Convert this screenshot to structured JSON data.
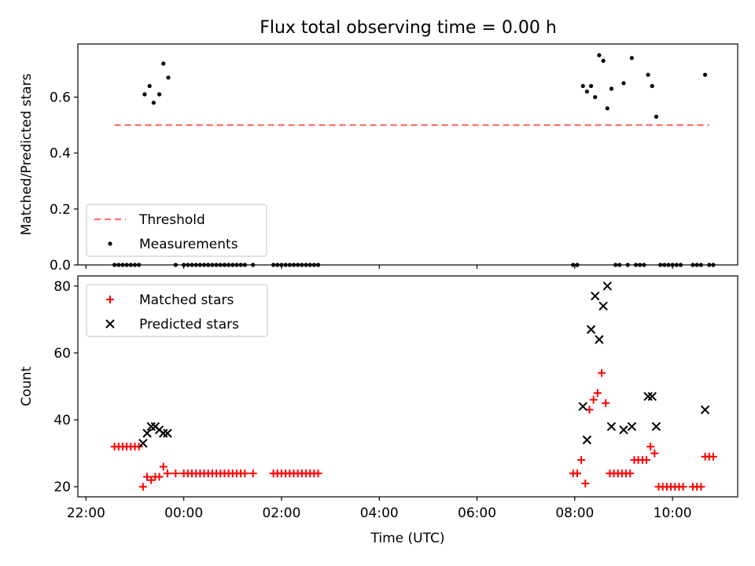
{
  "figure": {
    "title": "Flux total observing time = 0.00 h"
  },
  "chart_data": [
    {
      "type": "scatter",
      "ylabel": "Matched/Predicted stars",
      "xlim": [
        "21:50",
        "11:20"
      ],
      "ylim": [
        0,
        0.79
      ],
      "yticks": [
        0.0,
        0.2,
        0.4,
        0.6
      ],
      "ytick_labels": [
        "0.0",
        "0.2",
        "0.4",
        "0.6"
      ],
      "xticks": [
        "22:00",
        "00:00",
        "02:00",
        "04:00",
        "06:00",
        "08:00",
        "10:00"
      ],
      "show_xtick_labels": false,
      "legend": {
        "position": "lower-left",
        "entries": [
          "Threshold",
          "Measurements"
        ]
      },
      "threshold": {
        "name": "Threshold",
        "value": 0.5,
        "x_start": "22:35",
        "x_end": "10:45",
        "color": "#ff7070"
      },
      "series": [
        {
          "name": "Measurements",
          "color": "#000000",
          "points": [
            [
              "22:35",
              0.0
            ],
            [
              "22:40",
              0.0
            ],
            [
              "22:45",
              0.0
            ],
            [
              "22:50",
              0.0
            ],
            [
              "22:55",
              0.0
            ],
            [
              "23:00",
              0.0
            ],
            [
              "23:05",
              0.0
            ],
            [
              "23:12",
              0.61
            ],
            [
              "23:18",
              0.64
            ],
            [
              "23:23",
              0.58
            ],
            [
              "23:30",
              0.61
            ],
            [
              "23:35",
              0.72
            ],
            [
              "23:41",
              0.67
            ],
            [
              "23:50",
              0.0
            ],
            [
              "00:00",
              0.0
            ],
            [
              "00:05",
              0.0
            ],
            [
              "00:10",
              0.0
            ],
            [
              "00:15",
              0.0
            ],
            [
              "00:20",
              0.0
            ],
            [
              "00:25",
              0.0
            ],
            [
              "00:30",
              0.0
            ],
            [
              "00:35",
              0.0
            ],
            [
              "00:40",
              0.0
            ],
            [
              "00:45",
              0.0
            ],
            [
              "00:50",
              0.0
            ],
            [
              "00:55",
              0.0
            ],
            [
              "01:00",
              0.0
            ],
            [
              "01:05",
              0.0
            ],
            [
              "01:10",
              0.0
            ],
            [
              "01:15",
              0.0
            ],
            [
              "01:25",
              0.0
            ],
            [
              "01:50",
              0.0
            ],
            [
              "01:55",
              0.0
            ],
            [
              "02:00",
              0.0
            ],
            [
              "02:05",
              0.0
            ],
            [
              "02:10",
              0.0
            ],
            [
              "02:15",
              0.0
            ],
            [
              "02:20",
              0.0
            ],
            [
              "02:25",
              0.0
            ],
            [
              "02:30",
              0.0
            ],
            [
              "02:35",
              0.0
            ],
            [
              "02:40",
              0.0
            ],
            [
              "02:45",
              0.0
            ],
            [
              "07:58",
              0.0
            ],
            [
              "08:03",
              0.0
            ],
            [
              "08:10",
              0.64
            ],
            [
              "08:15",
              0.62
            ],
            [
              "08:20",
              0.64
            ],
            [
              "08:25",
              0.6
            ],
            [
              "08:30",
              0.75
            ],
            [
              "08:35",
              0.73
            ],
            [
              "08:40",
              0.56
            ],
            [
              "08:45",
              0.63
            ],
            [
              "08:50",
              0.0
            ],
            [
              "08:55",
              0.0
            ],
            [
              "09:00",
              0.65
            ],
            [
              "09:05",
              0.0
            ],
            [
              "09:10",
              0.74
            ],
            [
              "09:15",
              0.0
            ],
            [
              "09:20",
              0.0
            ],
            [
              "09:25",
              0.0
            ],
            [
              "09:30",
              0.68
            ],
            [
              "09:35",
              0.64
            ],
            [
              "09:40",
              0.53
            ],
            [
              "09:45",
              0.0
            ],
            [
              "09:50",
              0.0
            ],
            [
              "09:55",
              0.0
            ],
            [
              "10:00",
              0.0
            ],
            [
              "10:05",
              0.0
            ],
            [
              "10:10",
              0.0
            ],
            [
              "10:25",
              0.0
            ],
            [
              "10:30",
              0.0
            ],
            [
              "10:35",
              0.0
            ],
            [
              "10:40",
              0.68
            ],
            [
              "10:45",
              0.0
            ],
            [
              "10:50",
              0.0
            ]
          ]
        }
      ]
    },
    {
      "type": "scatter",
      "xlabel": "Time (UTC)",
      "ylabel": "Count",
      "xlim": [
        "21:50",
        "11:20"
      ],
      "ylim": [
        17,
        83
      ],
      "yticks": [
        20,
        40,
        60,
        80
      ],
      "ytick_labels": [
        "20",
        "40",
        "60",
        "80"
      ],
      "xticks": [
        "22:00",
        "00:00",
        "02:00",
        "04:00",
        "06:00",
        "08:00",
        "10:00"
      ],
      "xtick_labels": [
        "22:00",
        "00:00",
        "02:00",
        "04:00",
        "06:00",
        "08:00",
        "10:00"
      ],
      "show_xtick_labels": true,
      "legend": {
        "position": "top-left",
        "entries": [
          "Matched stars",
          "Predicted stars"
        ]
      },
      "series": [
        {
          "name": "Matched stars",
          "marker": "plus",
          "color": "#ff0000",
          "points": [
            [
              "22:35",
              32
            ],
            [
              "22:40",
              32
            ],
            [
              "22:45",
              32
            ],
            [
              "22:50",
              32
            ],
            [
              "22:55",
              32
            ],
            [
              "23:00",
              32
            ],
            [
              "23:05",
              32
            ],
            [
              "23:10",
              20
            ],
            [
              "23:15",
              23
            ],
            [
              "23:20",
              22
            ],
            [
              "23:25",
              23
            ],
            [
              "23:30",
              23
            ],
            [
              "23:35",
              26
            ],
            [
              "23:40",
              24
            ],
            [
              "23:50",
              24
            ],
            [
              "00:00",
              24
            ],
            [
              "00:05",
              24
            ],
            [
              "00:10",
              24
            ],
            [
              "00:15",
              24
            ],
            [
              "00:20",
              24
            ],
            [
              "00:25",
              24
            ],
            [
              "00:30",
              24
            ],
            [
              "00:35",
              24
            ],
            [
              "00:40",
              24
            ],
            [
              "00:45",
              24
            ],
            [
              "00:50",
              24
            ],
            [
              "00:55",
              24
            ],
            [
              "01:00",
              24
            ],
            [
              "01:05",
              24
            ],
            [
              "01:10",
              24
            ],
            [
              "01:15",
              24
            ],
            [
              "01:25",
              24
            ],
            [
              "01:50",
              24
            ],
            [
              "01:55",
              24
            ],
            [
              "02:00",
              24
            ],
            [
              "02:05",
              24
            ],
            [
              "02:10",
              24
            ],
            [
              "02:15",
              24
            ],
            [
              "02:20",
              24
            ],
            [
              "02:25",
              24
            ],
            [
              "02:30",
              24
            ],
            [
              "02:35",
              24
            ],
            [
              "02:40",
              24
            ],
            [
              "02:45",
              24
            ],
            [
              "07:58",
              24
            ],
            [
              "08:03",
              24
            ],
            [
              "08:08",
              28
            ],
            [
              "08:13",
              21
            ],
            [
              "08:18",
              43
            ],
            [
              "08:23",
              46
            ],
            [
              "08:28",
              48
            ],
            [
              "08:33",
              54
            ],
            [
              "08:38",
              45
            ],
            [
              "08:43",
              24
            ],
            [
              "08:48",
              24
            ],
            [
              "08:53",
              24
            ],
            [
              "08:58",
              24
            ],
            [
              "09:03",
              24
            ],
            [
              "09:08",
              24
            ],
            [
              "09:13",
              28
            ],
            [
              "09:18",
              28
            ],
            [
              "09:23",
              28
            ],
            [
              "09:28",
              28
            ],
            [
              "09:33",
              32
            ],
            [
              "09:38",
              30
            ],
            [
              "09:43",
              20
            ],
            [
              "09:48",
              20
            ],
            [
              "09:53",
              20
            ],
            [
              "09:58",
              20
            ],
            [
              "10:03",
              20
            ],
            [
              "10:08",
              20
            ],
            [
              "10:13",
              20
            ],
            [
              "10:25",
              20
            ],
            [
              "10:30",
              20
            ],
            [
              "10:35",
              20
            ],
            [
              "10:40",
              29
            ],
            [
              "10:45",
              29
            ],
            [
              "10:50",
              29
            ]
          ]
        },
        {
          "name": "Predicted stars",
          "marker": "x",
          "color": "#000000",
          "points": [
            [
              "23:10",
              33
            ],
            [
              "23:15",
              36
            ],
            [
              "23:20",
              38
            ],
            [
              "23:25",
              38
            ],
            [
              "23:30",
              37
            ],
            [
              "23:35",
              36
            ],
            [
              "23:40",
              36
            ],
            [
              "08:10",
              44
            ],
            [
              "08:15",
              34
            ],
            [
              "08:20",
              67
            ],
            [
              "08:25",
              77
            ],
            [
              "08:30",
              64
            ],
            [
              "08:35",
              74
            ],
            [
              "08:40",
              80
            ],
            [
              "08:45",
              38
            ],
            [
              "09:00",
              37
            ],
            [
              "09:10",
              38
            ],
            [
              "09:30",
              47
            ],
            [
              "09:35",
              47
            ],
            [
              "09:40",
              38
            ],
            [
              "10:40",
              43
            ]
          ]
        }
      ]
    }
  ]
}
